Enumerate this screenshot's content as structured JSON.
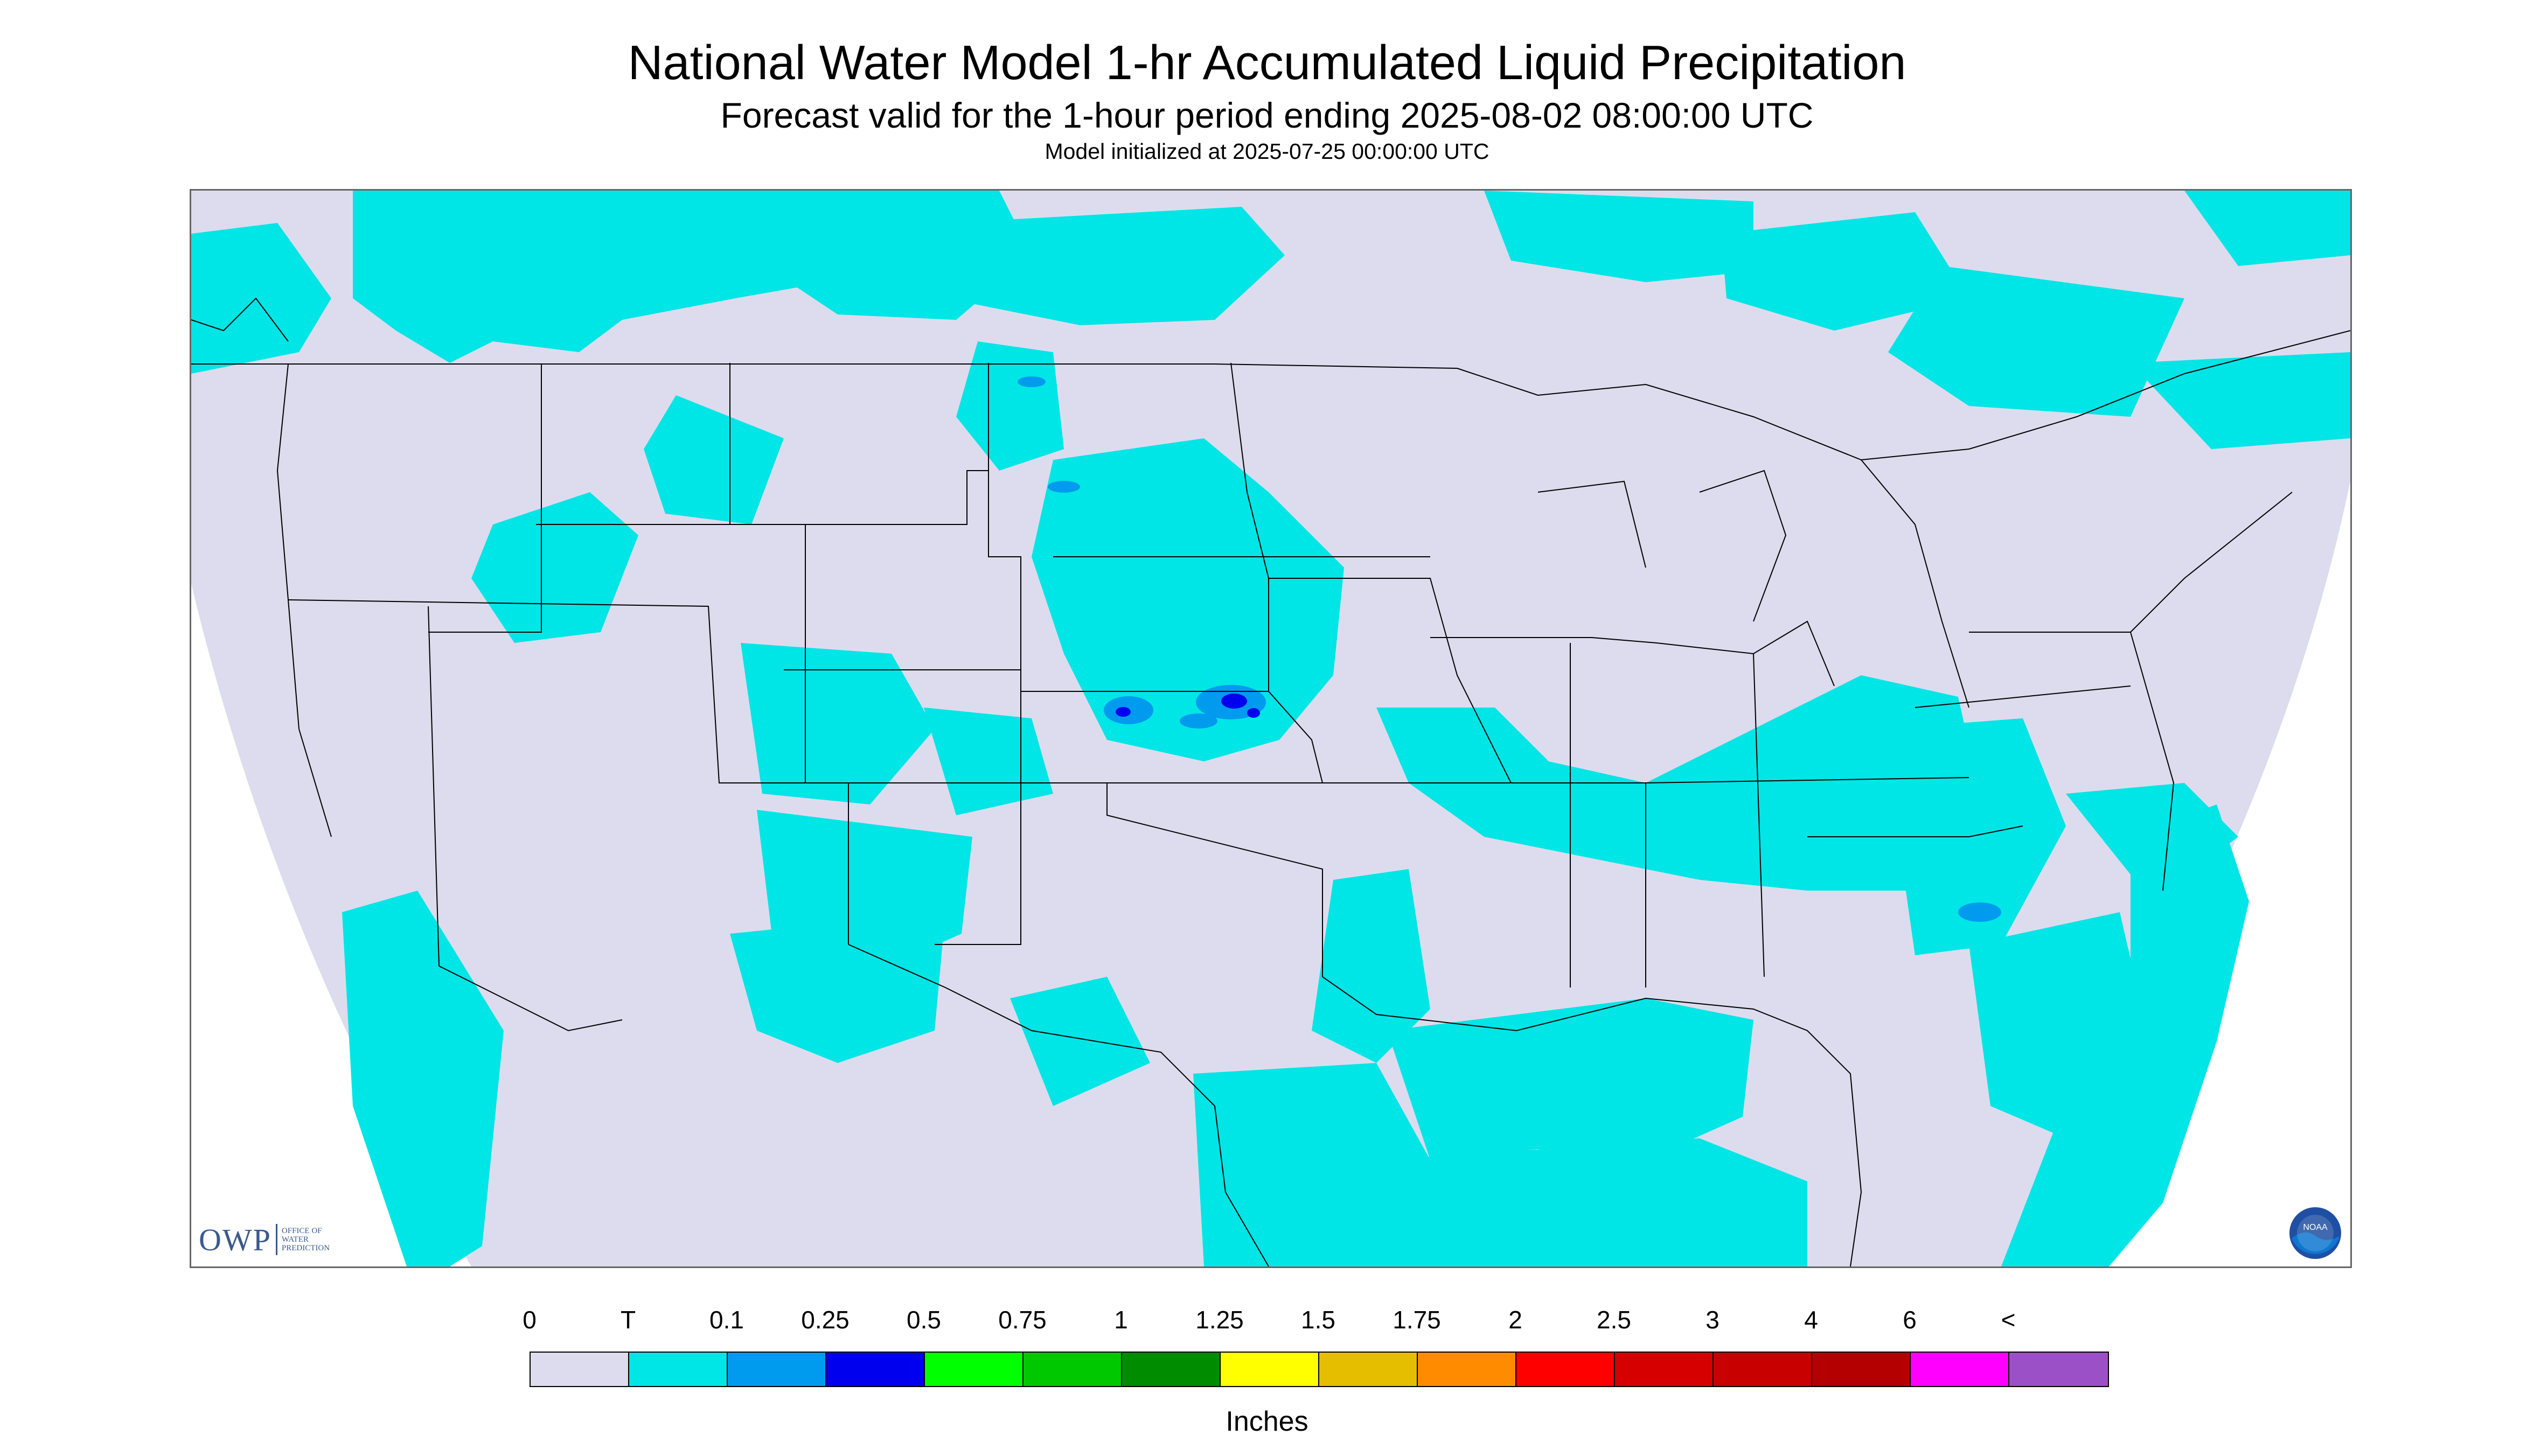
{
  "title": "National Water Model 1-hr Accumulated Liquid Precipitation",
  "subtitle": "Forecast valid for the 1-hour period ending 2025-08-02 08:00:00 UTC",
  "init_line": "Model initialized at 2025-07-25 00:00:00 UTC",
  "logos": {
    "owp_big": "OWP",
    "owp_small": [
      "OFFICE OF",
      "WATER",
      "PREDICTION"
    ],
    "noaa": "NOAA"
  },
  "colors": {
    "no_data": "#dcdcee",
    "trace": "#00e5e5",
    "light_blue": "#009bee",
    "blue": "#0000ee",
    "border": "#000000"
  },
  "legend": {
    "labels": [
      "0",
      "T",
      "0.1",
      "0.25",
      "0.5",
      "0.75",
      "1",
      "1.25",
      "1.5",
      "1.75",
      "2",
      "2.5",
      "3",
      "4",
      "6",
      "<"
    ],
    "colors": [
      "#dcdcee",
      "#00e5e5",
      "#009bee",
      "#0000ee",
      "#00ff00",
      "#00c800",
      "#008c00",
      "#ffff00",
      "#e6be00",
      "#ff8c00",
      "#ff0000",
      "#d70000",
      "#c80000",
      "#b40000",
      "#ff00ff",
      "#9b50c8"
    ],
    "units": "Inches"
  }
}
